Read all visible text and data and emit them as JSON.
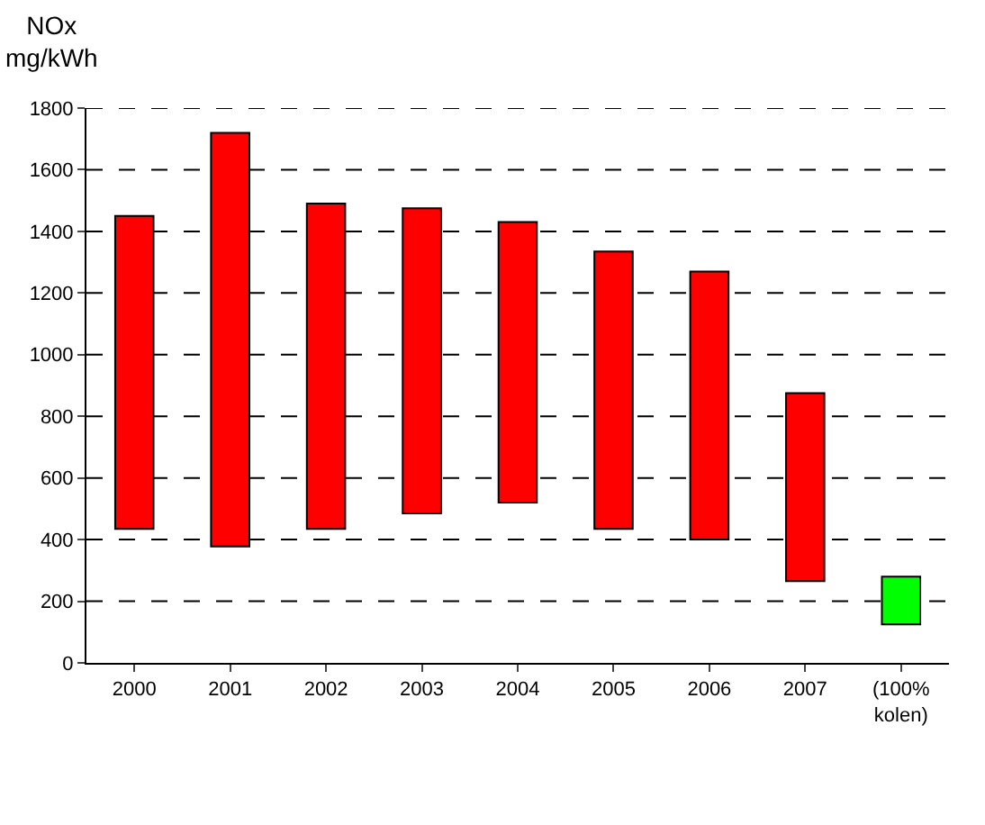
{
  "chart_data": {
    "type": "bar",
    "ylabel": "NOx mg/kWh",
    "categories": [
      "2000",
      "2001",
      "2002",
      "2003",
      "2004",
      "2005",
      "2006",
      "2007",
      "(100% kolen)"
    ],
    "base": [
      435,
      378,
      435,
      485,
      520,
      435,
      400,
      265,
      125
    ],
    "values": [
      1015,
      1342,
      1055,
      990,
      910,
      900,
      870,
      610,
      155
    ],
    "colors": [
      "#ff0000",
      "#ff0000",
      "#ff0000",
      "#ff0000",
      "#ff0000",
      "#ff0000",
      "#ff0000",
      "#ff0000",
      "#00ff00"
    ],
    "ylim": [
      0,
      1800
    ],
    "yticks": [
      0,
      200,
      400,
      600,
      800,
      1000,
      1200,
      1400,
      1600,
      1800
    ],
    "grid": "y"
  }
}
